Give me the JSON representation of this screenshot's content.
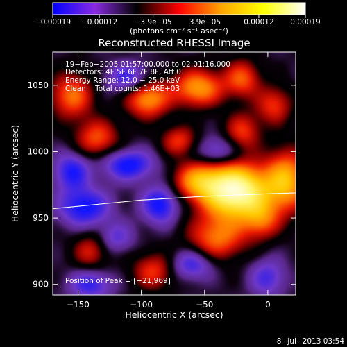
{
  "chart_data": {
    "type": "heatmap",
    "title": "Reconstructed RHESSI Image",
    "xlabel": "Heliocentric X (arcsec)",
    "ylabel": "Heliocentric Y (arcsec)",
    "xlim": [
      -170,
      22
    ],
    "ylim": [
      892,
      1075
    ],
    "x_ticks": [
      -150,
      -100,
      -50,
      0
    ],
    "x_tick_labels": [
      "−150",
      "−100",
      "−50",
      "0"
    ],
    "y_ticks": [
      900,
      950,
      1000,
      1050
    ],
    "y_tick_labels": [
      "900",
      "950",
      "1000",
      "1050"
    ],
    "colorbar": {
      "min": -0.00019,
      "max": 0.00019,
      "ticks": [
        -0.00019,
        -0.00012,
        -3.9e-05,
        3.9e-05,
        0.00012,
        0.00019
      ],
      "tick_labels": [
        "−0.00019",
        "−0.00012",
        "−3.9e−05",
        "3.9e−05",
        "0.00012",
        "0.00019"
      ],
      "unit_label": "(photons cm⁻² s⁻¹ asec⁻²)",
      "colors": [
        "#0000ff",
        "#8a2be2",
        "#000000",
        "#ff0000",
        "#ffa500",
        "#ffff00",
        "#ffffff"
      ]
    },
    "annotations": [
      "19−Feb−2005 01:57:00.000 to 02:01:16.000",
      "Detectors: 4F 5F 6F 7F 8F, Att 0",
      "Energy Range: 12.0 − 25.0 keV",
      "Clean    Total counts: 1.46E+03"
    ],
    "peak_label": "Position of Peak = [−21,969]",
    "peak": {
      "x": -21,
      "y": 969
    },
    "limb_curve": {
      "x": [
        -170,
        -100,
        -50,
        0,
        22
      ],
      "y": [
        957,
        963.5,
        966.3,
        968.2,
        968.9
      ]
    },
    "blobs": [
      {
        "x": -25,
        "y": 970,
        "sx": 18,
        "sy": 14,
        "a": 2.2
      },
      {
        "x": 15,
        "y": 978,
        "sx": 12,
        "sy": 16,
        "a": 1.2
      },
      {
        "x": -55,
        "y": 978,
        "sx": 14,
        "sy": 10,
        "a": 1.0
      },
      {
        "x": -40,
        "y": 935,
        "sx": 16,
        "sy": 12,
        "a": 0.9
      },
      {
        "x": -5,
        "y": 948,
        "sx": 10,
        "sy": 10,
        "a": 0.7
      },
      {
        "x": -95,
        "y": 1040,
        "sx": 12,
        "sy": 10,
        "a": 1.1
      },
      {
        "x": -55,
        "y": 1048,
        "sx": 14,
        "sy": 10,
        "a": 1.1
      },
      {
        "x": -155,
        "y": 1042,
        "sx": 12,
        "sy": 12,
        "a": 0.9
      },
      {
        "x": -20,
        "y": 1055,
        "sx": 10,
        "sy": 10,
        "a": 0.8
      },
      {
        "x": -135,
        "y": 1010,
        "sx": 12,
        "sy": 10,
        "a": 0.8
      },
      {
        "x": -20,
        "y": 1015,
        "sx": 10,
        "sy": 10,
        "a": 0.7
      },
      {
        "x": -70,
        "y": 1008,
        "sx": 10,
        "sy": 8,
        "a": 0.7
      },
      {
        "x": 5,
        "y": 1035,
        "sx": 10,
        "sy": 10,
        "a": 0.7
      },
      {
        "x": -90,
        "y": 910,
        "sx": 12,
        "sy": 10,
        "a": 0.7
      },
      {
        "x": -140,
        "y": 925,
        "sx": 10,
        "sy": 10,
        "a": 0.6
      },
      {
        "x": -85,
        "y": 960,
        "sx": 10,
        "sy": 10,
        "a": -0.9
      },
      {
        "x": -145,
        "y": 958,
        "sx": 14,
        "sy": 10,
        "a": -0.9
      },
      {
        "x": -110,
        "y": 990,
        "sx": 14,
        "sy": 8,
        "a": -0.9
      },
      {
        "x": -155,
        "y": 985,
        "sx": 10,
        "sy": 10,
        "a": -0.8
      },
      {
        "x": -140,
        "y": 900,
        "sx": 12,
        "sy": 8,
        "a": -0.7
      },
      {
        "x": -60,
        "y": 915,
        "sx": 12,
        "sy": 8,
        "a": -0.7
      },
      {
        "x": -110,
        "y": 1055,
        "sx": 12,
        "sy": 8,
        "a": -0.7
      },
      {
        "x": -40,
        "y": 1000,
        "sx": 12,
        "sy": 8,
        "a": -0.6
      },
      {
        "x": 0,
        "y": 905,
        "sx": 10,
        "sy": 10,
        "a": -0.6
      },
      {
        "x": -120,
        "y": 935,
        "sx": 10,
        "sy": 8,
        "a": -0.5
      }
    ]
  },
  "footer": {
    "timestamp": "8−Jul−2013 03:54"
  }
}
